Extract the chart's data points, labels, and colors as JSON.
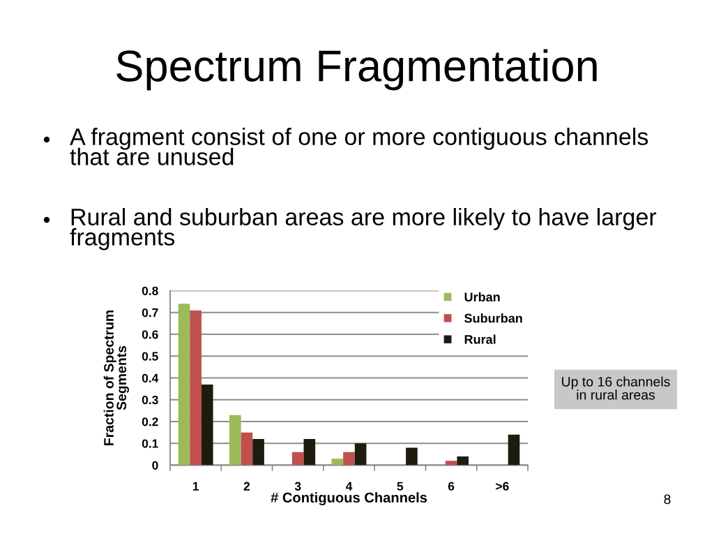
{
  "chart_data": {
    "type": "bar",
    "title": "Spectrum Fragmentation",
    "annotations": [
      "A fragment consist of one or more contiguous channels that are unused",
      "Rural and suburban areas are more likely to have larger fragments",
      "Up to 16 channels in rural areas",
      "8"
    ],
    "xlabel": "# Contiguous Channels",
    "ylabel": "Fraction of Spectrum Segments",
    "categories": [
      "1",
      "2",
      "3",
      "4",
      "5",
      "6",
      ">6"
    ],
    "series": [
      {
        "name": "Urban",
        "color": "#9bbb59",
        "values": [
          0.74,
          0.23,
          0,
          0.03,
          0,
          0,
          0
        ]
      },
      {
        "name": "Suburban",
        "color": "#c0504d",
        "values": [
          0.71,
          0.15,
          0.06,
          0.06,
          0,
          0.02,
          0
        ]
      },
      {
        "name": "Rural",
        "color": "#1e1c11",
        "values": [
          0.37,
          0.12,
          0.12,
          0.1,
          0.08,
          0.04,
          0.14
        ]
      }
    ],
    "ylim": [
      0,
      0.8
    ],
    "yticks": [
      0,
      0.1,
      0.2,
      0.3,
      0.4,
      0.5,
      0.6,
      0.7,
      0.8
    ],
    "grid": "y",
    "legend": "top right"
  }
}
